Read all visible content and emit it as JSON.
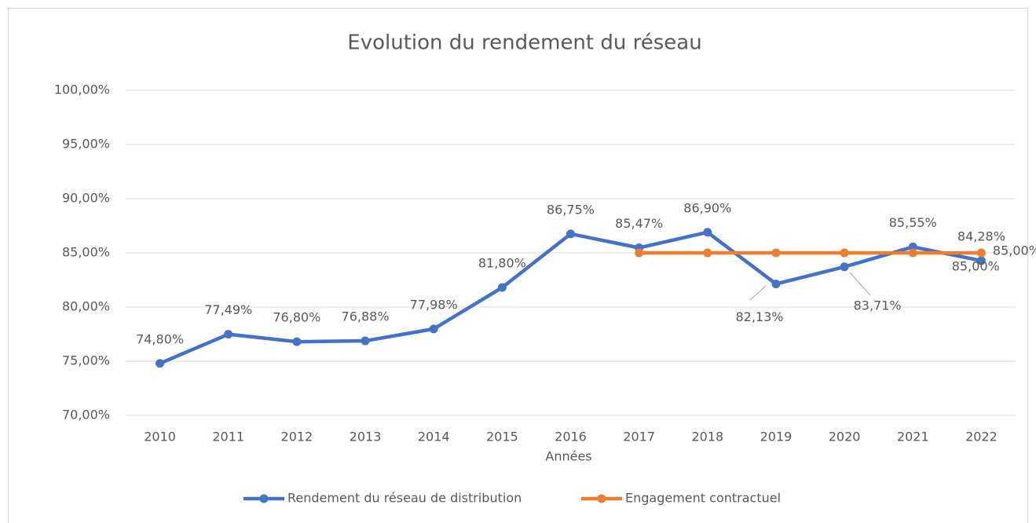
{
  "chart_data": {
    "type": "line",
    "title": "Evolution du rendement du réseau",
    "x_label": "Années",
    "categories": [
      "2010",
      "2011",
      "2012",
      "2013",
      "2014",
      "2015",
      "2016",
      "2017",
      "2018",
      "2019",
      "2020",
      "2021",
      "2022"
    ],
    "series": [
      {
        "name": "Rendement du réseau de distribution",
        "color": "#4472c4",
        "values": [
          74.8,
          77.49,
          76.8,
          76.88,
          77.98,
          81.8,
          86.75,
          85.47,
          86.9,
          82.13,
          83.71,
          85.55,
          84.28
        ],
        "value_labels": [
          "74,80%",
          "77,49%",
          "76,80%",
          "76,88%",
          "77,98%",
          "81,80%",
          "86,75%",
          "85,47%",
          "86,90%",
          "82,13%",
          "83,71%",
          "85,55%",
          "84,28%"
        ]
      },
      {
        "name": "Engagement contractuel",
        "color": "#ed7d31",
        "values": [
          null,
          null,
          null,
          null,
          null,
          null,
          null,
          85,
          85,
          85,
          85,
          85,
          85
        ],
        "value_labels": [
          null,
          null,
          null,
          null,
          null,
          null,
          null,
          null,
          null,
          null,
          null,
          "85,00%",
          "85,00%"
        ]
      }
    ],
    "ylim": [
      70,
      100
    ],
    "yticks": [
      {
        "value": 70,
        "label": "70,00%"
      },
      {
        "value": 75,
        "label": "75,00%"
      },
      {
        "value": 80,
        "label": "80,00%"
      },
      {
        "value": 85,
        "label": "85,00%"
      },
      {
        "value": 90,
        "label": "90,00%"
      },
      {
        "value": 95,
        "label": "95,00%"
      },
      {
        "value": 100,
        "label": "100,00%"
      }
    ],
    "grid": true,
    "legend": "bottom"
  }
}
